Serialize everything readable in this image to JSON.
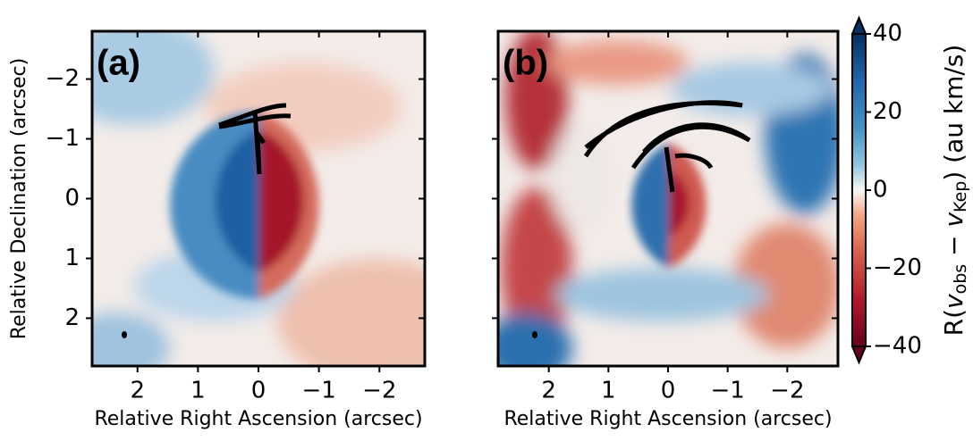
{
  "chart_data": [
    {
      "type": "image",
      "panel_label": "(a)",
      "xlabel": "Relative Right Ascension (arcsec)",
      "ylabel": "Relative Declination (arcsec)",
      "xlim": [
        2.75,
        -2.75
      ],
      "ylim": [
        2.8,
        -2.8
      ],
      "xticks": [
        2,
        1,
        0,
        {
          "value": -1,
          "label": "−1"
        },
        {
          "value": -2,
          "label": "−2"
        }
      ],
      "yticks": [
        {
          "value": -2,
          "label": "−2"
        },
        {
          "value": -1,
          "label": "−1"
        },
        0,
        1,
        2
      ]
    },
    {
      "type": "image",
      "panel_label": "(b)",
      "xlabel": "Relative Right Ascension (arcsec)",
      "xlim": [
        2.85,
        -2.85
      ],
      "ylim": [
        2.8,
        -2.8
      ],
      "xticks": [
        2,
        1,
        0,
        {
          "value": -1,
          "label": "−1"
        },
        {
          "value": -2,
          "label": "−2"
        }
      ],
      "yticks": [
        -2,
        -1,
        0,
        1,
        2
      ],
      "colorbar": {
        "lim": [
          -40,
          40
        ],
        "ticks": [
          {
            "value": -40,
            "label": "−40"
          },
          {
            "value": -20,
            "label": "−20"
          },
          0,
          20,
          40
        ],
        "label_parts": [
          "R(",
          "v",
          "obs",
          " − ",
          "v",
          "Kep",
          ") (au km/s)"
        ]
      }
    }
  ]
}
